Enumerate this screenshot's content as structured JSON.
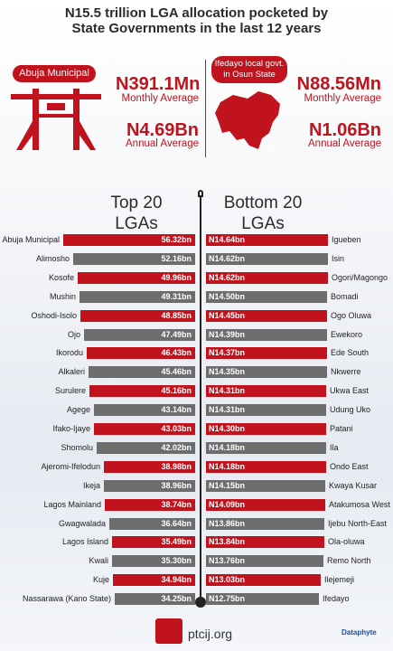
{
  "header": {
    "title_line1": "N15.5 trillion LGA allocation pocketed by",
    "title_line2": "State Governments in the last 12 years"
  },
  "left_panel": {
    "title": "Abuja Municipal",
    "monthly_value": "N391.1Mn",
    "monthly_label": "Monthly Average",
    "annual_value": "N4.69Bn",
    "annual_label": "Annual Average",
    "icon": "bridge-icon"
  },
  "right_panel": {
    "title": "Ifedayo local govt. in Osun State",
    "monthly_value": "N88.56Mn",
    "monthly_label": "Monthly Average",
    "annual_value": "N1.06Bn",
    "annual_label": "Annual Average",
    "map_label": "OSUN",
    "icon": "nigeria-map-icon"
  },
  "colors": {
    "red": "#c0131d",
    "gray": "#6d6d6d"
  },
  "chart_data": [
    {
      "type": "bar",
      "title_line1": "Top 20",
      "title_line2": "LGAs",
      "categories": [
        "Abuja Municipal",
        "Alimosho",
        "Kosofe",
        "Mushin",
        "Oshodi-Isolo",
        "Ojo",
        "Ikorodu",
        "Alkaleri",
        "Surulere",
        "Agege",
        "Ifako-Ijaye",
        "Shomolu",
        "Ajeromi-Ifelodun",
        "Ikeja",
        "Lagos Mainland",
        "Gwagwalada",
        "Lagos Island",
        "Kwali",
        "Kuje",
        "Nassarawa (Kano State)"
      ],
      "values": [
        56.32,
        52.16,
        49.96,
        49.31,
        48.85,
        47.49,
        46.43,
        45.46,
        45.16,
        43.14,
        43.03,
        42.02,
        38.98,
        38.96,
        38.74,
        36.64,
        35.49,
        35.3,
        34.94,
        34.25
      ],
      "labels": [
        "56.32bn",
        "52.16bn",
        "49.96bn",
        "49.31bn",
        "48.85bn",
        "47.49bn",
        "46.43bn",
        "45.46bn",
        "45.16bn",
        "43.14bn",
        "43.03bn",
        "42.02bn",
        "38.98bn",
        "38.96bn",
        "38.74bn",
        "36.64bn",
        "35.49bn",
        "35.30bn",
        "34.94bn",
        "34.25bn"
      ],
      "unit": "bn"
    },
    {
      "type": "bar",
      "title_line1": "Bottom 20",
      "title_line2": "LGAs",
      "categories": [
        "Igueben",
        "Isin",
        "Ogori/Magongo",
        "Bomadi",
        "Ogo Oluwa",
        "Ewekoro",
        "Ede South",
        "Nkwerre",
        "Ukwa East",
        "Udung Uko",
        "Patani",
        "Ila",
        "Ondo East",
        "Kwaya Kusar",
        "Atakumosa West",
        "Ijebu North-East",
        "Ola-oluwa",
        "Remo North",
        "Ilejemeji",
        "Ifedayo"
      ],
      "values": [
        14.64,
        14.62,
        14.62,
        14.5,
        14.45,
        14.39,
        14.37,
        14.35,
        14.31,
        14.31,
        14.3,
        14.18,
        14.18,
        14.15,
        14.09,
        13.86,
        13.84,
        13.76,
        13.03,
        12.75
      ],
      "labels": [
        "N14.64bn",
        "N14.62bn",
        "N14.62bn",
        "N14.50bn",
        "N14.45bn",
        "N14.39bn",
        "N14.37bn",
        "N14.35bn",
        "N14.31bn",
        "N14.31bn",
        "N14.30bn",
        "N14.18bn",
        "N14.18bn",
        "N14.15bn",
        "N14.09bn",
        "N13.86bn",
        "N13.84bn",
        "N13.76bn",
        "N13.03bn",
        "N12.75bn"
      ],
      "unit": "bn"
    }
  ],
  "footer": {
    "url": "ptcij.org",
    "brand": "Dataphyte"
  }
}
